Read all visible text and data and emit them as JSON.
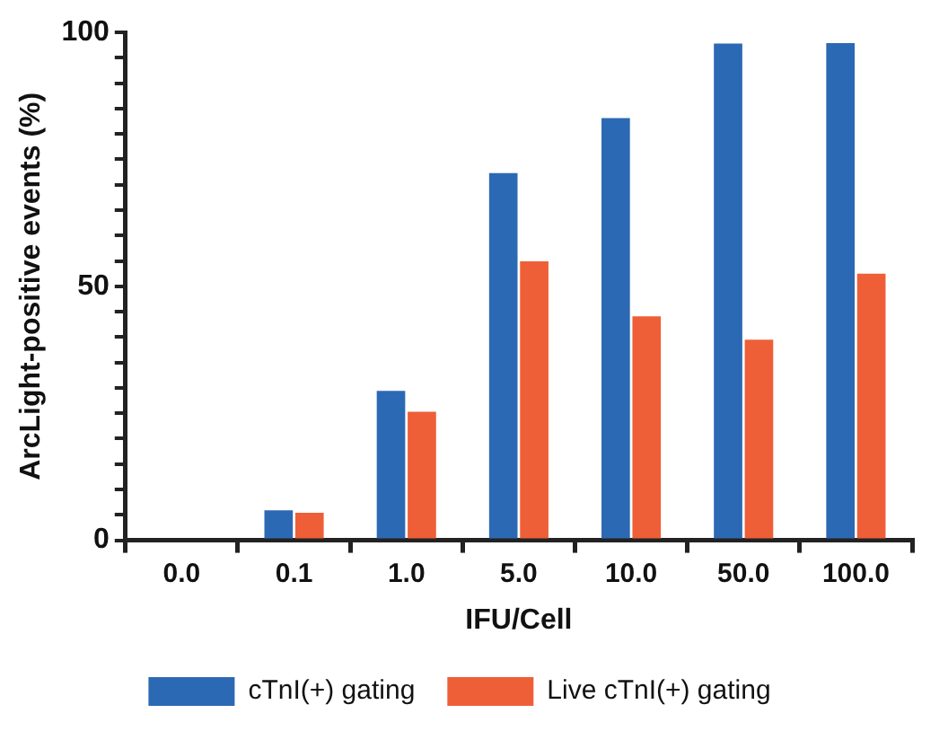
{
  "chart_data": {
    "type": "bar",
    "xlabel": "IFU/Cell",
    "ylabel": "ArcLight-positive events (%)",
    "categories": [
      "0.0",
      "0.1",
      "1.0",
      "5.0",
      "10.0",
      "50.0",
      "100.0"
    ],
    "series": [
      {
        "name": "cTnI(+) gating",
        "color": "#2c69b4",
        "values": [
          0,
          5.9,
          29.4,
          72.3,
          83.1,
          97.8,
          97.9
        ]
      },
      {
        "name": "Live cTnI(+) gating",
        "color": "#ee5f37",
        "values": [
          0,
          5.4,
          25.3,
          54.9,
          44.1,
          39.5,
          52.5
        ]
      }
    ],
    "ylim": [
      0,
      100
    ],
    "yticks": [
      0,
      {
        "value": 5,
        "label": null
      },
      {
        "value": 10,
        "label": null
      },
      {
        "value": 15,
        "label": null
      },
      {
        "value": 20,
        "label": null
      },
      {
        "value": 25,
        "label": null
      },
      {
        "value": 30,
        "label": null
      },
      {
        "value": 35,
        "label": null
      },
      {
        "value": 40,
        "label": null
      },
      {
        "value": 45,
        "label": null
      },
      50,
      {
        "value": 55,
        "label": null
      },
      {
        "value": 60,
        "label": null
      },
      {
        "value": 65,
        "label": null
      },
      {
        "value": 70,
        "label": null
      },
      {
        "value": 75,
        "label": null
      },
      {
        "value": 80,
        "label": null
      },
      {
        "value": 85,
        "label": null
      },
      {
        "value": 90,
        "label": null
      },
      {
        "value": 95,
        "label": null
      },
      100
    ],
    "grid": false,
    "legend": "bottom"
  }
}
